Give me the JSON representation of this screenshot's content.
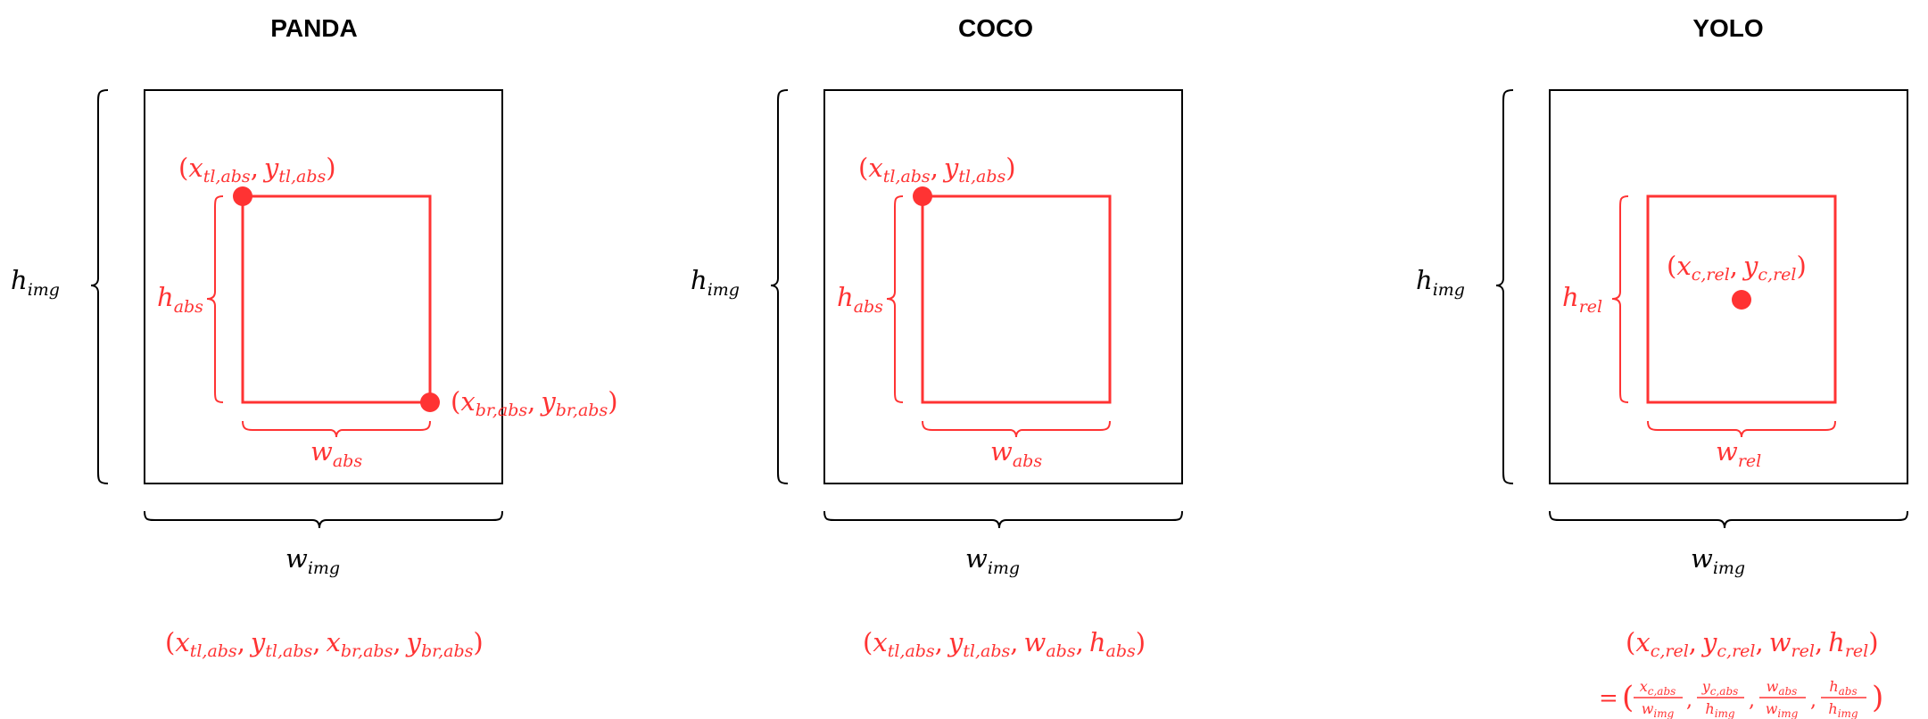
{
  "panels": [
    {
      "title": "PANDA",
      "h_img": {
        "base": "h",
        "sub": "img"
      },
      "w_img": {
        "base": "w",
        "sub": "img"
      },
      "h_box": {
        "base": "h",
        "sub": "abs"
      },
      "w_box": {
        "base": "w",
        "sub": "abs"
      },
      "point_tl": {
        "open": "(",
        "x": "x",
        "x_sub": "tl,abs",
        "sep": ",",
        "y": "y",
        "y_sub": "tl,abs",
        "close": ")"
      },
      "point_br": {
        "open": "(",
        "x": "x",
        "x_sub": "br,abs",
        "sep": ",",
        "y": "y",
        "y_sub": "br,abs",
        "close": ")"
      },
      "formula": [
        "(",
        "x",
        "tl,abs",
        ",",
        "y",
        "tl,abs",
        ",",
        "x",
        "br,abs",
        ",",
        "y",
        "br,abs",
        ")"
      ]
    },
    {
      "title": "COCO",
      "h_img": {
        "base": "h",
        "sub": "img"
      },
      "w_img": {
        "base": "w",
        "sub": "img"
      },
      "h_box": {
        "base": "h",
        "sub": "abs"
      },
      "w_box": {
        "base": "w",
        "sub": "abs"
      },
      "point_tl": {
        "open": "(",
        "x": "x",
        "x_sub": "tl,abs",
        "sep": ",",
        "y": "y",
        "y_sub": "tl,abs",
        "close": ")"
      },
      "formula": [
        "(",
        "x",
        "tl,abs",
        ",",
        "y",
        "tl,abs",
        ",",
        "w",
        "abs",
        ",",
        "h",
        "abs",
        ")"
      ]
    },
    {
      "title": "YOLO",
      "h_img": {
        "base": "h",
        "sub": "img"
      },
      "w_img": {
        "base": "w",
        "sub": "img"
      },
      "h_box": {
        "base": "h",
        "sub": "rel"
      },
      "w_box": {
        "base": "w",
        "sub": "rel"
      },
      "point_c": {
        "open": "(",
        "x": "x",
        "x_sub": "c,rel",
        "sep": ",",
        "y": "y",
        "y_sub": "c,rel",
        "close": ")"
      },
      "formula": [
        "(",
        "x",
        "c,rel",
        ",",
        "y",
        "c,rel",
        ",",
        "w",
        "rel",
        ",",
        "h",
        "rel",
        ")"
      ],
      "formula2": {
        "eq": "=",
        "open": "(",
        "close": ")",
        "sep": ",",
        "fracs": [
          {
            "num": "x",
            "num_sub": "c,abs",
            "den": "w",
            "den_sub": "img"
          },
          {
            "num": "y",
            "num_sub": "c,abs",
            "den": "h",
            "den_sub": "img"
          },
          {
            "num": "w",
            "num_sub": "abs",
            "den": "w",
            "den_sub": "img"
          },
          {
            "num": "h",
            "num_sub": "abs",
            "den": "h",
            "den_sub": "img"
          }
        ]
      }
    }
  ],
  "colors": {
    "box": "#ff3333",
    "frame": "#000000"
  }
}
